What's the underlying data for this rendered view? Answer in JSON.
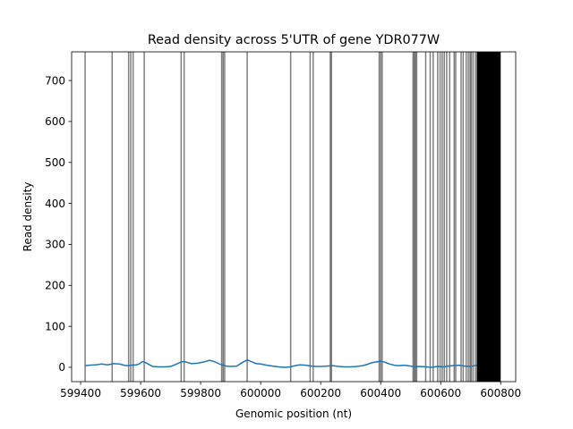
{
  "chart_data": {
    "type": "line",
    "title": "Read density across 5'UTR of gene YDR077W",
    "xlabel": "Genomic position (nt)",
    "ylabel": "Read density",
    "xlim": [
      599370,
      600850
    ],
    "ylim": [
      -35,
      770
    ],
    "x_ticks": [
      599400,
      599600,
      599800,
      600000,
      600200,
      600400,
      600600,
      600800
    ],
    "y_ticks": [
      0,
      100,
      200,
      300,
      400,
      500,
      600,
      700
    ],
    "grid": false,
    "colors": {
      "line": "#1f77b4",
      "vlines": "#000000"
    },
    "vlines": {
      "opacity": 0.5,
      "x": [
        599415,
        599505,
        599560,
        599567,
        599575,
        599612,
        599735,
        599745,
        599870,
        599875,
        599880,
        599955,
        600100,
        600165,
        600175,
        600232,
        600236,
        600395,
        600400,
        600405,
        600508,
        600512,
        600516,
        600520,
        600550,
        600565,
        600575,
        600590,
        600598,
        600605,
        600612,
        600620,
        600630,
        600645,
        600650,
        600668,
        600675,
        600685,
        600692,
        600698,
        600702,
        600708,
        600716
      ],
      "solid_band": [
        600720,
        600800
      ]
    },
    "series": [
      {
        "x": [
          599415,
          599430,
          599450,
          599470,
          599490,
          599510,
          599530,
          599550,
          599570,
          599585,
          599595,
          599605,
          599615,
          599625,
          599640,
          599660,
          599680,
          599700,
          599720,
          599735,
          599745,
          599755,
          599770,
          599790,
          599810,
          599830,
          599845,
          599860,
          599870,
          599885,
          599900,
          599920,
          599940,
          599955,
          599965,
          599975,
          599985,
          600000,
          600020,
          600040,
          600060,
          600080,
          600100,
          600115,
          600130,
          600150,
          600170,
          600185,
          600200,
          600220,
          600240,
          600260,
          600280,
          600300,
          600320,
          600340,
          600355,
          600370,
          600385,
          600400,
          600415,
          600430,
          600445,
          600460,
          600480,
          600500,
          600515,
          600530,
          600550,
          600570,
          600590,
          600610,
          600625,
          600640,
          600660,
          600680,
          600700,
          600720
        ],
        "y": [
          4,
          5,
          6,
          8,
          6,
          9,
          8,
          4,
          5,
          6,
          8,
          14,
          12,
          8,
          2,
          1,
          1,
          2,
          8,
          13,
          14,
          12,
          9,
          10,
          13,
          17,
          14,
          9,
          6,
          3,
          2,
          3,
          12,
          18,
          15,
          12,
          9,
          8,
          5,
          3,
          1,
          0,
          1,
          4,
          6,
          5,
          3,
          2,
          2,
          3,
          4,
          2,
          1,
          1,
          2,
          4,
          7,
          11,
          13,
          15,
          12,
          8,
          5,
          4,
          5,
          3,
          1,
          2,
          1,
          0,
          2,
          1,
          3,
          4,
          5,
          3,
          2,
          5
        ]
      }
    ]
  }
}
